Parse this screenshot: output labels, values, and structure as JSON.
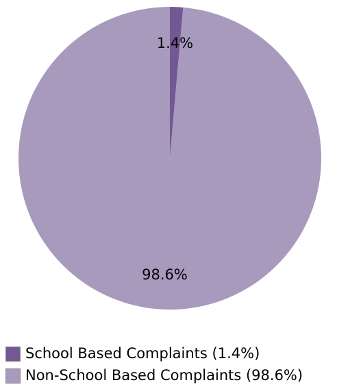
{
  "chart_data": {
    "type": "pie",
    "title": "",
    "slices": [
      {
        "name": "School Based Complaints",
        "value": 1.4,
        "label": "1.4%",
        "legend": "School Based Complaints (1.4%)",
        "color": "#735993"
      },
      {
        "name": "Non-School Based Complaints",
        "value": 98.6,
        "label": "98.6%",
        "legend": "Non-School Based Complaints (98.6%)",
        "color": "#a89abd"
      }
    ],
    "start_angle": "12 o'clock",
    "direction": "clockwise",
    "legend_position": "bottom-left"
  }
}
